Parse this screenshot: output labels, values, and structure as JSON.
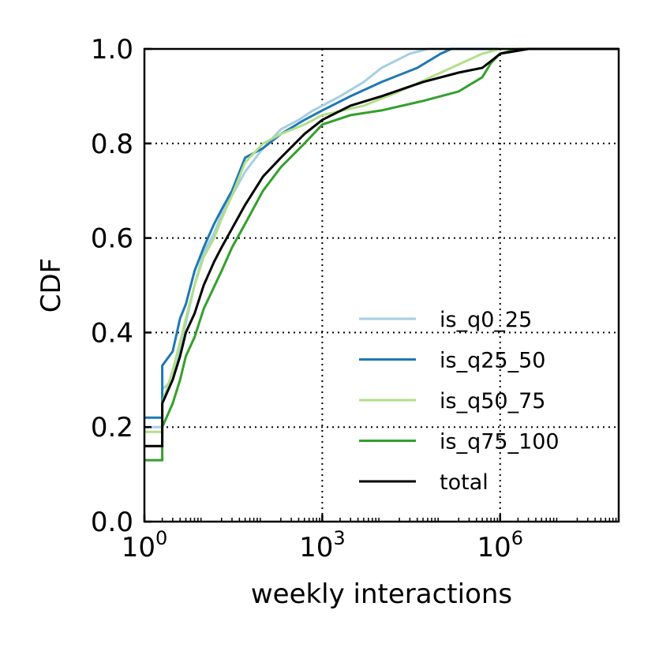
{
  "chart_data": {
    "type": "line",
    "xlabel": "weekly interactions",
    "ylabel": "CDF",
    "xscale": "log",
    "xlim": [
      1,
      100000000
    ],
    "ylim": [
      0.0,
      1.0
    ],
    "grid": true,
    "legend_position": "bottom-right",
    "x_ticks": [
      {
        "value": 1,
        "base": "10",
        "exp": "0"
      },
      {
        "value": 1000,
        "base": "10",
        "exp": "3"
      },
      {
        "value": 1000000,
        "base": "10",
        "exp": "6"
      }
    ],
    "y_ticks": [
      "0.0",
      "0.2",
      "0.4",
      "0.6",
      "0.8",
      "1.0"
    ],
    "series": [
      {
        "name": "is_q0_25",
        "color": "#a6cee3",
        "points": [
          [
            1,
            0.2
          ],
          [
            2,
            0.2
          ],
          [
            2,
            0.28
          ],
          [
            3,
            0.3
          ],
          [
            4,
            0.37
          ],
          [
            5,
            0.42
          ],
          [
            7,
            0.5
          ],
          [
            10,
            0.57
          ],
          [
            15,
            0.61
          ],
          [
            20,
            0.65
          ],
          [
            30,
            0.69
          ],
          [
            50,
            0.74
          ],
          [
            100,
            0.79
          ],
          [
            200,
            0.83
          ],
          [
            400,
            0.85
          ],
          [
            700,
            0.87
          ],
          [
            1000,
            0.88
          ],
          [
            2000,
            0.9
          ],
          [
            5000,
            0.93
          ],
          [
            10000,
            0.96
          ],
          [
            30000,
            0.99
          ],
          [
            60000,
            1.0
          ],
          [
            100000000,
            1.0
          ]
        ]
      },
      {
        "name": "is_q25_50",
        "color": "#1f78b4",
        "points": [
          [
            1,
            0.22
          ],
          [
            2,
            0.22
          ],
          [
            2,
            0.33
          ],
          [
            3,
            0.36
          ],
          [
            4,
            0.43
          ],
          [
            5,
            0.46
          ],
          [
            7,
            0.53
          ],
          [
            10,
            0.58
          ],
          [
            15,
            0.63
          ],
          [
            20,
            0.66
          ],
          [
            30,
            0.7
          ],
          [
            50,
            0.77
          ],
          [
            100,
            0.79
          ],
          [
            200,
            0.82
          ],
          [
            500,
            0.85
          ],
          [
            1000,
            0.87
          ],
          [
            3000,
            0.9
          ],
          [
            10000,
            0.93
          ],
          [
            40000,
            0.96
          ],
          [
            100000,
            0.99
          ],
          [
            150000,
            1.0
          ],
          [
            100000000,
            1.0
          ]
        ]
      },
      {
        "name": "is_q50_75",
        "color": "#b2df8a",
        "points": [
          [
            1,
            0.19
          ],
          [
            2,
            0.19
          ],
          [
            2,
            0.25
          ],
          [
            3,
            0.32
          ],
          [
            4,
            0.38
          ],
          [
            5,
            0.43
          ],
          [
            7,
            0.5
          ],
          [
            10,
            0.56
          ],
          [
            15,
            0.6
          ],
          [
            20,
            0.64
          ],
          [
            30,
            0.69
          ],
          [
            50,
            0.76
          ],
          [
            100,
            0.8
          ],
          [
            200,
            0.82
          ],
          [
            500,
            0.84
          ],
          [
            1000,
            0.86
          ],
          [
            5000,
            0.88
          ],
          [
            20000,
            0.91
          ],
          [
            100000,
            0.95
          ],
          [
            500000,
            0.99
          ],
          [
            1000000,
            1.0
          ],
          [
            100000000,
            1.0
          ]
        ]
      },
      {
        "name": "is_q75_100",
        "color": "#33a02c",
        "points": [
          [
            1,
            0.13
          ],
          [
            2,
            0.13
          ],
          [
            2,
            0.2
          ],
          [
            3,
            0.25
          ],
          [
            4,
            0.3
          ],
          [
            5,
            0.35
          ],
          [
            7,
            0.39
          ],
          [
            10,
            0.45
          ],
          [
            20,
            0.53
          ],
          [
            30,
            0.58
          ],
          [
            50,
            0.63
          ],
          [
            100,
            0.7
          ],
          [
            200,
            0.75
          ],
          [
            500,
            0.8
          ],
          [
            1000,
            0.84
          ],
          [
            3000,
            0.86
          ],
          [
            10000,
            0.87
          ],
          [
            50000,
            0.89
          ],
          [
            200000,
            0.91
          ],
          [
            500000,
            0.94
          ],
          [
            700000,
            0.97
          ],
          [
            1000000,
            0.99
          ],
          [
            2000000,
            1.0
          ],
          [
            100000000,
            1.0
          ]
        ]
      },
      {
        "name": "total",
        "color": "#000000",
        "points": [
          [
            1,
            0.16
          ],
          [
            2,
            0.16
          ],
          [
            2,
            0.25
          ],
          [
            3,
            0.3
          ],
          [
            4,
            0.35
          ],
          [
            5,
            0.4
          ],
          [
            7,
            0.44
          ],
          [
            10,
            0.5
          ],
          [
            15,
            0.55
          ],
          [
            20,
            0.58
          ],
          [
            30,
            0.62
          ],
          [
            50,
            0.67
          ],
          [
            100,
            0.73
          ],
          [
            200,
            0.77
          ],
          [
            500,
            0.82
          ],
          [
            1000,
            0.85
          ],
          [
            3000,
            0.88
          ],
          [
            10000,
            0.9
          ],
          [
            50000,
            0.93
          ],
          [
            200000,
            0.95
          ],
          [
            500000,
            0.96
          ],
          [
            800000,
            0.98
          ],
          [
            1000000,
            0.99
          ],
          [
            3000000,
            1.0
          ],
          [
            100000000,
            1.0
          ]
        ]
      }
    ]
  }
}
